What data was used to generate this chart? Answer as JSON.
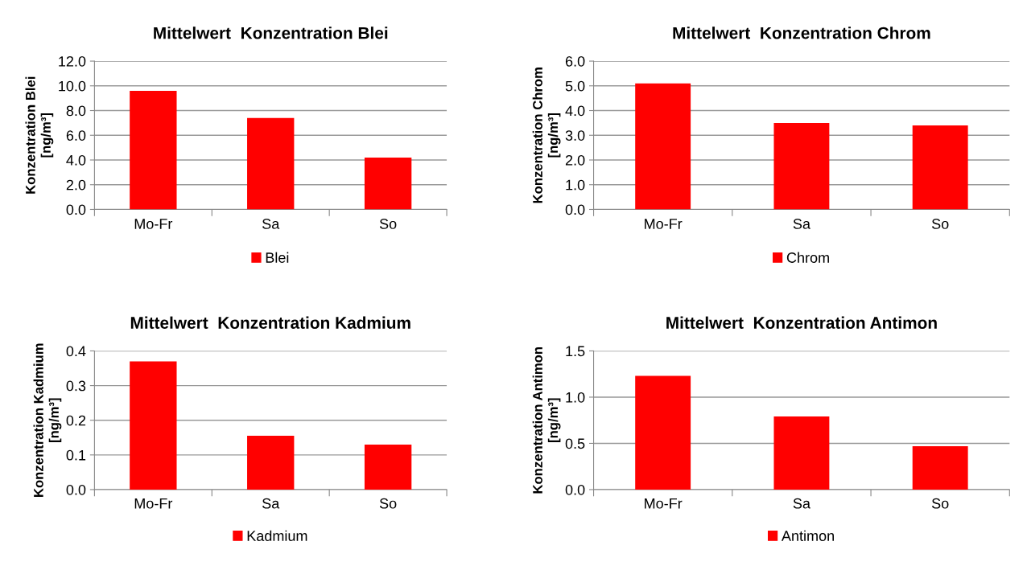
{
  "chart_data": [
    {
      "type": "bar",
      "title": "Mittelwert  Konzentration Blei",
      "ylabel": "Konzentration Blei\n[ng/m³]",
      "categories": [
        "Mo-Fr",
        "Sa",
        "So"
      ],
      "series": [
        {
          "name": "Blei",
          "color": "#ff0000",
          "values": [
            9.6,
            7.4,
            4.2
          ]
        }
      ],
      "ylim": [
        0,
        12
      ],
      "yticks": [
        {
          "value": 0,
          "label": "0.0"
        },
        {
          "value": 2,
          "label": "2.0"
        },
        {
          "value": 4,
          "label": "4.0"
        },
        {
          "value": 6,
          "label": "6.0"
        },
        {
          "value": 8,
          "label": "8.0"
        },
        {
          "value": 10,
          "label": "10.0"
        },
        {
          "value": 12,
          "label": "12.0"
        }
      ],
      "grid": "y",
      "legend": "bottom"
    },
    {
      "type": "bar",
      "title": "Mittelwert  Konzentration Chrom",
      "ylabel": "Konzentration Chrom\n[ng/m³]",
      "categories": [
        "Mo-Fr",
        "Sa",
        "So"
      ],
      "series": [
        {
          "name": "Chrom",
          "color": "#ff0000",
          "values": [
            5.1,
            3.5,
            3.4
          ]
        }
      ],
      "ylim": [
        0,
        6
      ],
      "yticks": [
        {
          "value": 0,
          "label": "0.0"
        },
        {
          "value": 1,
          "label": "1.0"
        },
        {
          "value": 2,
          "label": "2.0"
        },
        {
          "value": 3,
          "label": "3.0"
        },
        {
          "value": 4,
          "label": "4.0"
        },
        {
          "value": 5,
          "label": "5.0"
        },
        {
          "value": 6,
          "label": "6.0"
        }
      ],
      "grid": "y",
      "legend": "bottom"
    },
    {
      "type": "bar",
      "title": "Mittelwert  Konzentration Kadmium",
      "ylabel": "Konzentration Kadmium\n[ng/m³]",
      "categories": [
        "Mo-Fr",
        "Sa",
        "So"
      ],
      "series": [
        {
          "name": "Kadmium",
          "color": "#ff0000",
          "values": [
            0.37,
            0.155,
            0.13
          ]
        }
      ],
      "ylim": [
        0,
        0.4
      ],
      "yticks": [
        {
          "value": 0,
          "label": "0.0"
        },
        0.1,
        0.2,
        0.3,
        0.4
      ],
      "grid": "y",
      "legend": "bottom"
    },
    {
      "type": "bar",
      "title": "Mittelwert  Konzentration Antimon",
      "ylabel": "Konzentration Antimon\n[ng/m³]",
      "categories": [
        "Mo-Fr",
        "Sa",
        "So"
      ],
      "series": [
        {
          "name": "Antimon",
          "color": "#ff0000",
          "values": [
            1.23,
            0.79,
            0.47
          ]
        }
      ],
      "ylim": [
        0,
        1.5
      ],
      "yticks": [
        {
          "value": 0,
          "label": "0.0"
        },
        {
          "value": 0.5,
          "label": "0.5"
        },
        {
          "value": 1,
          "label": "1.0"
        },
        1.5
      ],
      "grid": "y",
      "legend": "bottom"
    }
  ]
}
